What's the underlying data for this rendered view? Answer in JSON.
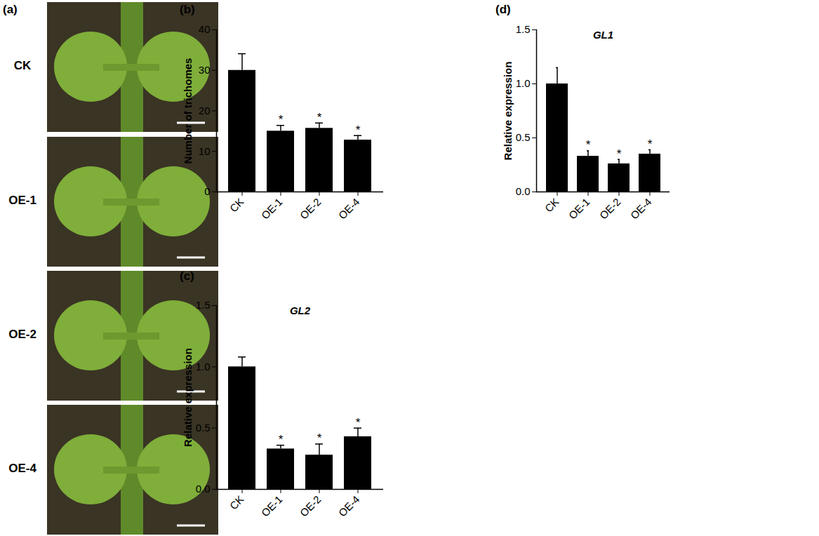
{
  "photo_panel": {
    "panel_label": "(a)",
    "rows": [
      "CK",
      "OE-1",
      "OE-2",
      "OE-4"
    ]
  },
  "chart_data": [
    {
      "type": "bar",
      "panel_label": "(b)",
      "y_label": "Number of trichomes",
      "categories": [
        "CK",
        "OE-1",
        "OE-2",
        "OE-4"
      ],
      "values": [
        30,
        15,
        15.7,
        12.8
      ],
      "errors": [
        4.1,
        1.4,
        1.3,
        1.1
      ],
      "significance": [
        null,
        "*",
        "*",
        "*"
      ],
      "color": "#000000",
      "ylim": [
        0,
        40
      ],
      "yticks": [
        0,
        10,
        20,
        30,
        40
      ]
    },
    {
      "type": "bar",
      "panel_label": "(c)",
      "title": "GL2",
      "y_label": "Relative expression",
      "categories": [
        "CK",
        "OE-1",
        "OE-2",
        "OE-4"
      ],
      "values": [
        1.0,
        0.33,
        0.28,
        0.43
      ],
      "errors": [
        0.08,
        0.03,
        0.09,
        0.07
      ],
      "significance": [
        null,
        "*",
        "*",
        "*"
      ],
      "color": "#000000",
      "ylim": [
        0,
        1.5
      ],
      "yticks": [
        {
          "value": 0,
          "label": "0.0"
        },
        {
          "value": 0.5,
          "label": "0.5"
        },
        {
          "value": 1,
          "label": "1.0"
        },
        {
          "value": 1.5,
          "label": "1.5"
        }
      ]
    },
    {
      "type": "bar",
      "panel_label": "(d)",
      "title": "GL1",
      "y_label": "Relative expression",
      "categories": [
        "CK",
        "OE-1",
        "OE-2",
        "OE-4"
      ],
      "values": [
        1.0,
        0.33,
        0.26,
        0.35
      ],
      "errors": [
        0.15,
        0.05,
        0.04,
        0.04
      ],
      "significance": [
        null,
        "*",
        "*",
        "*"
      ],
      "color": "#000000",
      "ylim": [
        0,
        1.5
      ],
      "yticks": [
        {
          "value": 0,
          "label": "0.0"
        },
        {
          "value": 0.5,
          "label": "0.5"
        },
        {
          "value": 1,
          "label": "1.0"
        },
        {
          "value": 1.5,
          "label": "1.5"
        }
      ]
    }
  ]
}
